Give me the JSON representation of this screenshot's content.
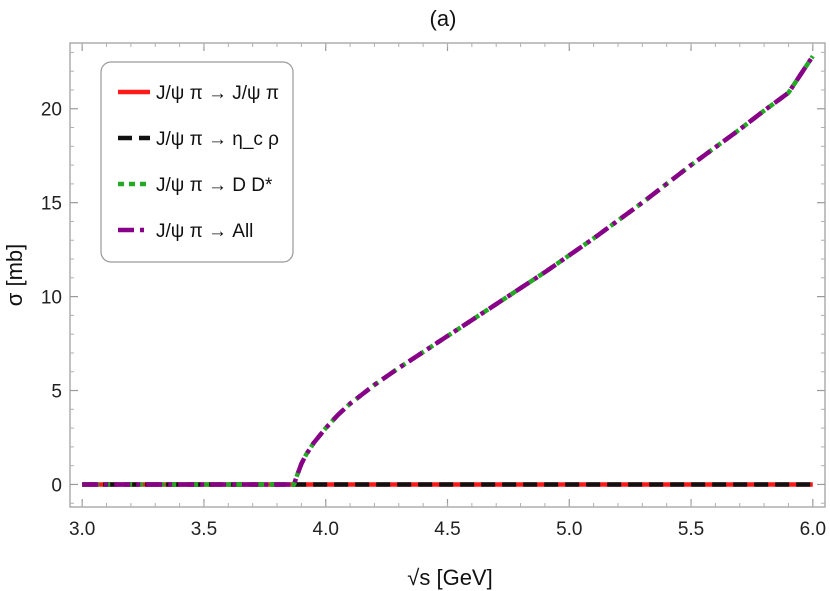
{
  "chart_data": {
    "type": "line",
    "title": "(a)",
    "xlabel": "√s [GeV]",
    "ylabel": "σ [mb]",
    "xlim": [
      2.95,
      6.05
    ],
    "ylim": [
      -1.2,
      23.5
    ],
    "x_ticks": [
      3.0,
      3.5,
      4.0,
      4.5,
      5.0,
      5.5,
      6.0
    ],
    "x_tick_labels": [
      "3.0",
      "3.5",
      "4.0",
      "4.5",
      "5.0",
      "5.5",
      "6.0"
    ],
    "y_ticks": [
      0,
      5,
      10,
      15,
      20
    ],
    "y_tick_labels": [
      "0",
      "5",
      "10",
      "15",
      "20"
    ],
    "grid": false,
    "legend_position": "top-left",
    "series": [
      {
        "name": "J/ψ π → J/ψ π",
        "color": "#ff1a1a",
        "style": "solid",
        "x": [
          3.0,
          3.5,
          4.0,
          4.5,
          5.0,
          5.5,
          6.0
        ],
        "y": [
          0,
          0,
          0,
          0,
          0,
          0,
          0
        ]
      },
      {
        "name": "J/ψ π → η_c ρ",
        "color": "#111111",
        "style": "dashed",
        "x": [
          3.0,
          3.5,
          4.0,
          4.5,
          5.0,
          5.5,
          6.0
        ],
        "y": [
          0,
          0,
          0,
          0,
          0,
          0,
          0
        ]
      },
      {
        "name": "J/ψ π → D D*",
        "color": "#22aa22",
        "style": "dotted",
        "x": [
          3.0,
          3.5,
          3.87,
          3.875,
          3.88,
          3.89,
          3.9,
          3.92,
          3.95,
          4.0,
          4.05,
          4.1,
          4.2,
          4.3,
          4.4,
          4.5,
          4.6,
          4.7,
          4.8,
          4.9,
          5.0,
          5.1,
          5.2,
          5.3,
          5.4,
          5.5,
          5.6,
          5.7,
          5.8,
          5.9,
          6.0
        ],
        "y": [
          0,
          0,
          0,
          0.2,
          0.4,
          0.75,
          1.1,
          1.6,
          2.2,
          3.0,
          3.7,
          4.3,
          5.3,
          6.2,
          7.05,
          7.9,
          8.75,
          9.6,
          10.45,
          11.3,
          12.2,
          13.1,
          14.05,
          15.0,
          16.0,
          17.0,
          17.95,
          18.9,
          19.9,
          20.85,
          22.8
        ]
      },
      {
        "name": "J/ψ π → All",
        "color": "#880088",
        "style": "dash-dot",
        "x": [
          3.0,
          3.5,
          3.87,
          3.875,
          3.88,
          3.89,
          3.9,
          3.92,
          3.95,
          4.0,
          4.05,
          4.1,
          4.2,
          4.3,
          4.4,
          4.5,
          4.6,
          4.7,
          4.8,
          4.9,
          5.0,
          5.1,
          5.2,
          5.3,
          5.4,
          5.5,
          5.6,
          5.7,
          5.8,
          5.9,
          6.0
        ],
        "y": [
          0,
          0,
          0,
          0.2,
          0.4,
          0.75,
          1.1,
          1.6,
          2.2,
          3.0,
          3.7,
          4.3,
          5.3,
          6.2,
          7.05,
          7.9,
          8.75,
          9.6,
          10.45,
          11.3,
          12.2,
          13.1,
          14.05,
          15.0,
          16.0,
          17.0,
          17.95,
          18.9,
          19.9,
          20.85,
          22.8
        ]
      }
    ]
  }
}
